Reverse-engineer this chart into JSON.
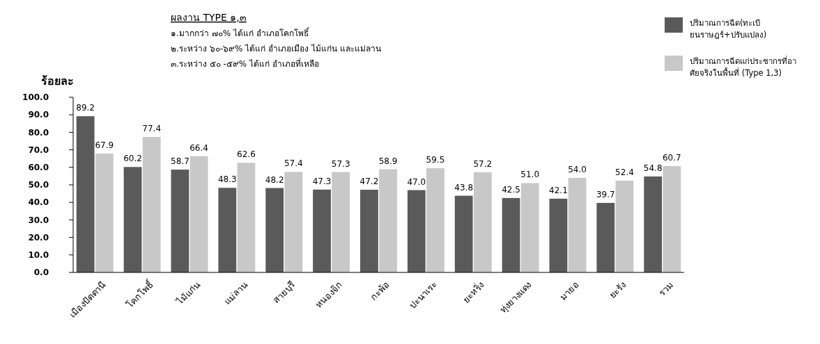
{
  "chart_data": {
    "type": "bar",
    "ylabel": "ร้อยละ",
    "categories": [
      "เมืองปัตตานี",
      "โคกโพธิ์",
      "ไม้แก่น",
      "แม่ลาน",
      "สายบุรี",
      "หนองจิก",
      "กะพ้อ",
      "ปะนาเระ",
      "ยะหริ่ง",
      "ทุ่งยางแดง",
      "มายอ",
      "ยะรัง",
      "รวม"
    ],
    "series": [
      {
        "name": "ปริมาณการฉีด(ทะเบียนราษฎร์+ปรับแปลง)",
        "color": "#5a5a5a",
        "values": [
          89.2,
          60.2,
          58.7,
          48.3,
          48.2,
          47.3,
          47.2,
          47.0,
          43.8,
          42.5,
          42.1,
          39.7,
          54.8
        ],
        "value_labels": [
          "89.2",
          "60.2",
          "58.7",
          "48.3",
          "48.2",
          "47.3",
          "47.2",
          "47.0",
          "43.8",
          "42.5",
          "42.1",
          "39.7",
          "54.8"
        ]
      },
      {
        "name": "ปริมาณการฉีดแก่ประชากรที่อาศัยจริงในพื้นที่ (Type 1,3)",
        "color": "#c8c8c8",
        "values": [
          67.9,
          77.4,
          66.4,
          62.6,
          57.4,
          57.3,
          58.9,
          59.5,
          57.2,
          51.0,
          54.0,
          52.4,
          60.7
        ],
        "value_labels": [
          "67.9",
          "77.4",
          "66.4",
          "62.6",
          "57.4",
          "57.3",
          "58.9",
          "59.5",
          "57.2",
          "51.0",
          "54.0",
          "52.4",
          "60.7"
        ]
      }
    ],
    "ylim": [
      0,
      100
    ],
    "yticks": [
      {
        "value": 0,
        "label": "0.0"
      },
      {
        "value": 10,
        "label": "10.0"
      },
      {
        "value": 20,
        "label": "20.0"
      },
      {
        "value": 30,
        "label": "30.0"
      },
      {
        "value": 40,
        "label": "40.0"
      },
      {
        "value": 50,
        "label": "50.0"
      },
      {
        "value": 60,
        "label": "60.0"
      },
      {
        "value": 70,
        "label": "70.0"
      },
      {
        "value": 80,
        "label": "80.0"
      },
      {
        "value": 90,
        "label": "90.0"
      },
      {
        "value": 100,
        "label": "100.0"
      }
    ],
    "legend": "top right",
    "annotations": [
      "ผลงาน TYPE ๑,๓",
      "๑.มากกว่า ๗๐% ได้แก่ อำเภอโคกโพธิ์",
      "๒.ระหว่าง ๖๐-๖๙% ได้แก่ อำเภอเมือง ไม้แก่น และแม่ลาน",
      "๓.ระหว่าง ๕๐ -๕๙% ได้แก่ อำเภอที่เหลือ"
    ]
  }
}
